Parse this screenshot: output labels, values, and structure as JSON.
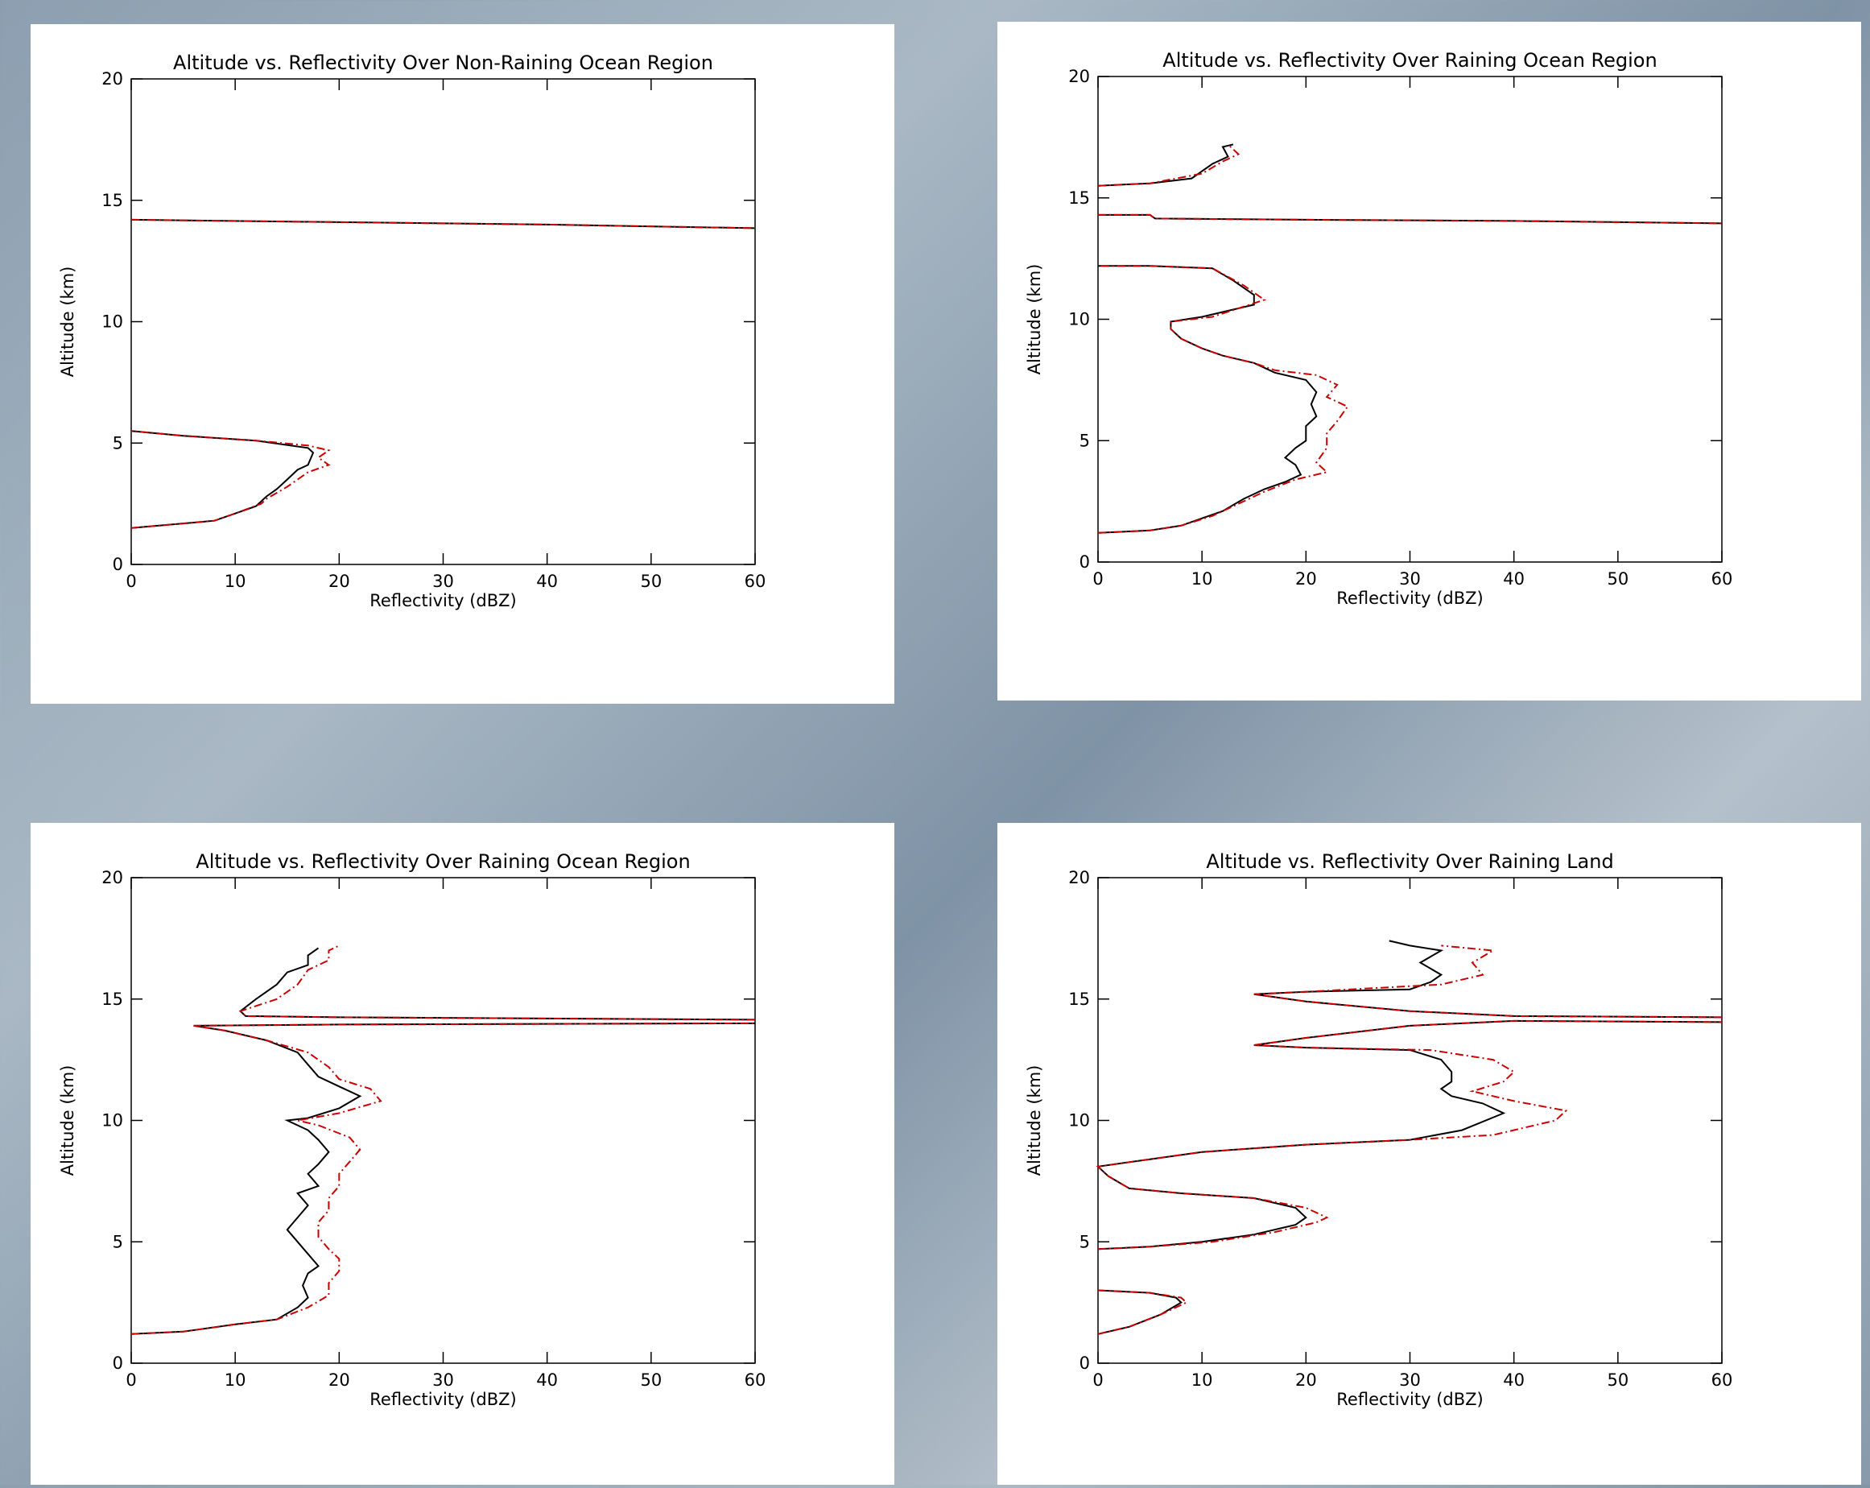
{
  "chart_data": [
    {
      "type": "line",
      "title": "Altitude vs. Reflectivity Over Non-Raining Ocean Region",
      "xlabel": "Reflectivity (dBZ)",
      "ylabel": "Altitude (km)",
      "xlim": [
        0,
        60
      ],
      "ylim": [
        0,
        20
      ],
      "xticks": [
        0,
        10,
        20,
        30,
        40,
        50,
        60
      ],
      "yticks": [
        0,
        5,
        10,
        15,
        20
      ],
      "series": [
        {
          "color": "#000000",
          "line_style": "solid",
          "x": [
            0,
            8,
            10,
            12,
            12.5,
            13,
            14,
            15,
            16,
            17,
            17.5,
            17,
            12,
            5,
            0,
            null,
            0,
            20,
            40,
            60
          ],
          "values": [
            1.5,
            1.8,
            2.1,
            2.4,
            2.6,
            2.8,
            3.1,
            3.5,
            3.9,
            4.1,
            4.6,
            4.8,
            5.1,
            5.3,
            5.5,
            null,
            14.2,
            14.1,
            14.0,
            13.85
          ]
        },
        {
          "color": "#cc0000",
          "line_style": "dashdot",
          "x": [
            0,
            8,
            10,
            12.5,
            13,
            15,
            17,
            19,
            18,
            19,
            17,
            12,
            5,
            0,
            null,
            0,
            20,
            40,
            60
          ],
          "values": [
            1.5,
            1.8,
            2.1,
            2.5,
            2.7,
            3.2,
            3.8,
            4.1,
            4.4,
            4.7,
            4.9,
            5.1,
            5.3,
            5.5,
            null,
            14.2,
            14.1,
            14.0,
            13.85
          ]
        }
      ]
    },
    {
      "type": "line",
      "title": "Altitude vs. Reflectivity Over Raining Ocean Region",
      "xlabel": "Reflectivity (dBZ)",
      "ylabel": "Altitude (km)",
      "xlim": [
        0,
        60
      ],
      "ylim": [
        0,
        20
      ],
      "xticks": [
        0,
        10,
        20,
        30,
        40,
        50,
        60
      ],
      "yticks": [
        0,
        5,
        10,
        15,
        20
      ],
      "series": [
        {
          "color": "#000000",
          "line_style": "solid",
          "x": [
            0,
            5,
            8,
            10,
            12,
            14,
            16,
            18,
            19.5,
            19,
            18,
            19,
            20,
            20,
            21,
            20.5,
            21,
            20,
            17,
            15,
            12,
            10,
            8,
            7,
            7,
            10,
            15,
            15,
            13,
            11,
            5,
            0,
            null,
            0,
            5,
            5.5,
            20,
            40,
            60,
            null,
            0,
            5,
            9,
            10,
            11,
            12.5,
            12,
            13
          ],
          "values": [
            1.2,
            1.3,
            1.5,
            1.8,
            2.1,
            2.6,
            3.0,
            3.3,
            3.6,
            4.0,
            4.3,
            4.7,
            5.0,
            5.6,
            6.0,
            6.5,
            7.0,
            7.5,
            7.8,
            8.2,
            8.5,
            8.8,
            9.2,
            9.6,
            9.9,
            10.1,
            10.6,
            11.0,
            11.6,
            12.1,
            12.2,
            12.2,
            null,
            14.3,
            14.3,
            14.15,
            14.1,
            14.05,
            13.95,
            null,
            15.5,
            15.6,
            15.8,
            16.1,
            16.4,
            16.7,
            17.1,
            17.2
          ]
        },
        {
          "color": "#cc0000",
          "line_style": "dashdot",
          "x": [
            0,
            5,
            8,
            11,
            13,
            16,
            19,
            22,
            21,
            22,
            22,
            23,
            24,
            22,
            23,
            21,
            17,
            15,
            12,
            10,
            8,
            7,
            7,
            11,
            16,
            14,
            11,
            5,
            0,
            null,
            0,
            5,
            5.5,
            20,
            40,
            60,
            null,
            0,
            5,
            10,
            12,
            13.5,
            12.5
          ],
          "values": [
            1.2,
            1.3,
            1.5,
            1.9,
            2.3,
            2.9,
            3.4,
            3.7,
            4.1,
            4.7,
            5.3,
            5.8,
            6.4,
            6.8,
            7.3,
            7.7,
            7.9,
            8.2,
            8.5,
            8.8,
            9.2,
            9.6,
            9.9,
            10.1,
            10.8,
            11.4,
            12.1,
            12.2,
            12.2,
            null,
            14.3,
            14.3,
            14.15,
            14.1,
            14.05,
            13.95,
            null,
            15.5,
            15.6,
            16.0,
            16.5,
            16.8,
            17.2
          ]
        }
      ]
    },
    {
      "type": "line",
      "title": "Altitude vs. Reflectivity Over Raining Ocean Region",
      "xlabel": "Reflectivity (dBZ)",
      "ylabel": "Altitude (km)",
      "xlim": [
        0,
        60
      ],
      "ylim": [
        0,
        20
      ],
      "xticks": [
        0,
        10,
        20,
        30,
        40,
        50,
        60
      ],
      "yticks": [
        0,
        5,
        10,
        15,
        20
      ],
      "series": [
        {
          "color": "#000000",
          "line_style": "solid",
          "x": [
            0,
            5,
            10,
            14,
            16,
            17,
            16.5,
            17,
            18,
            17,
            16,
            15,
            16,
            17,
            16,
            18,
            17,
            18,
            19,
            18,
            17,
            15,
            17,
            20,
            22,
            20,
            18,
            17,
            16,
            13,
            9,
            6,
            20,
            60,
            null,
            60,
            20,
            11,
            10.5,
            12,
            14,
            15,
            17,
            17,
            18
          ],
          "values": [
            1.2,
            1.3,
            1.6,
            1.8,
            2.3,
            2.7,
            3.2,
            3.7,
            4.0,
            4.5,
            5.0,
            5.5,
            6.0,
            6.5,
            7.0,
            7.3,
            7.8,
            8.2,
            8.7,
            9.2,
            9.6,
            10.0,
            10.1,
            10.5,
            11.0,
            11.4,
            11.8,
            12.3,
            12.8,
            13.3,
            13.7,
            13.9,
            13.95,
            14.0,
            null,
            14.15,
            14.25,
            14.3,
            14.5,
            15.0,
            15.6,
            16.1,
            16.4,
            16.8,
            17.1
          ]
        },
        {
          "color": "#cc0000",
          "line_style": "dashdot",
          "x": [
            0,
            5,
            10,
            14,
            17,
            19,
            19,
            20,
            20,
            19,
            18,
            18,
            19,
            19,
            20,
            20,
            21,
            22,
            21,
            18,
            16,
            20,
            24,
            23,
            20,
            19,
            17,
            13,
            9,
            6,
            20,
            60,
            null,
            60,
            20,
            11,
            10.5,
            14,
            16,
            17,
            19,
            19,
            20
          ],
          "values": [
            1.2,
            1.3,
            1.6,
            1.8,
            2.3,
            2.8,
            3.3,
            3.8,
            4.3,
            4.7,
            5.2,
            5.8,
            6.3,
            6.8,
            7.3,
            7.8,
            8.3,
            8.8,
            9.3,
            9.8,
            10.0,
            10.3,
            10.8,
            11.3,
            11.7,
            12.2,
            12.8,
            13.3,
            13.7,
            13.9,
            13.95,
            14.0,
            null,
            14.15,
            14.25,
            14.3,
            14.5,
            15.0,
            15.6,
            16.2,
            16.6,
            17.0,
            17.2
          ]
        }
      ]
    },
    {
      "type": "line",
      "title": "Altitude vs. Reflectivity Over Raining Land",
      "xlabel": "Reflectivity (dBZ)",
      "ylabel": "Altitude (km)",
      "xlim": [
        0,
        60
      ],
      "ylim": [
        0,
        20
      ],
      "xticks": [
        0,
        10,
        20,
        30,
        40,
        50,
        60
      ],
      "yticks": [
        0,
        5,
        10,
        15,
        20
      ],
      "series": [
        {
          "color": "#000000",
          "line_style": "solid",
          "x": [
            0,
            3,
            6,
            8,
            7.5,
            5,
            0,
            null,
            0,
            5,
            10,
            15,
            19,
            20,
            19,
            15,
            8,
            3,
            1,
            0,
            5,
            10,
            20,
            30,
            35,
            39,
            37,
            34,
            33,
            34,
            34,
            33,
            30,
            20,
            15,
            20,
            30,
            40,
            60,
            null,
            60,
            40,
            30,
            20,
            15,
            20,
            30,
            32,
            33,
            31,
            33,
            30,
            28
          ],
          "values": [
            1.2,
            1.5,
            2.0,
            2.5,
            2.7,
            2.9,
            3.0,
            null,
            4.7,
            4.8,
            5.0,
            5.3,
            5.7,
            6.0,
            6.4,
            6.8,
            7.0,
            7.2,
            7.7,
            8.1,
            8.4,
            8.7,
            9.0,
            9.2,
            9.6,
            10.3,
            10.7,
            11.0,
            11.3,
            11.6,
            12.0,
            12.5,
            12.9,
            13.0,
            13.1,
            13.4,
            13.9,
            14.1,
            14.05,
            null,
            14.25,
            14.3,
            14.5,
            14.9,
            15.2,
            15.3,
            15.4,
            15.7,
            16.0,
            16.5,
            17.0,
            17.2,
            17.4
          ]
        },
        {
          "color": "#cc0000",
          "line_style": "dashdot",
          "x": [
            0,
            3,
            6,
            8.5,
            8,
            5,
            0,
            null,
            0,
            5,
            11,
            17,
            21,
            22,
            20,
            15,
            8,
            3,
            1,
            0,
            5,
            10,
            20,
            30,
            38,
            44,
            45,
            40,
            36,
            39,
            40,
            38,
            32,
            20,
            15,
            20,
            30,
            40,
            60,
            null,
            60,
            40,
            30,
            20,
            15,
            20,
            33,
            37,
            36,
            38,
            33
          ],
          "values": [
            1.2,
            1.5,
            2.0,
            2.5,
            2.7,
            2.9,
            3.0,
            null,
            4.7,
            4.8,
            5.0,
            5.4,
            5.8,
            6.0,
            6.4,
            6.8,
            7.0,
            7.2,
            7.7,
            8.1,
            8.4,
            8.7,
            9.0,
            9.2,
            9.4,
            10.0,
            10.4,
            10.8,
            11.2,
            11.6,
            12.0,
            12.5,
            12.9,
            13.0,
            13.1,
            13.4,
            13.9,
            14.1,
            14.05,
            null,
            14.25,
            14.3,
            14.5,
            14.9,
            15.2,
            15.3,
            15.6,
            16.0,
            16.5,
            17.0,
            17.2
          ]
        }
      ]
    }
  ]
}
